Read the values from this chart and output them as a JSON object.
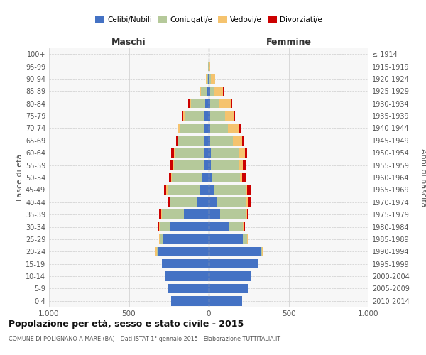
{
  "age_groups": [
    "0-4",
    "5-9",
    "10-14",
    "15-19",
    "20-24",
    "25-29",
    "30-34",
    "35-39",
    "40-44",
    "45-49",
    "50-54",
    "55-59",
    "60-64",
    "65-69",
    "70-74",
    "75-79",
    "80-84",
    "85-89",
    "90-94",
    "95-99",
    "100+"
  ],
  "birth_years": [
    "2010-2014",
    "2005-2009",
    "2000-2004",
    "1995-1999",
    "1990-1994",
    "1985-1989",
    "1980-1984",
    "1975-1979",
    "1970-1974",
    "1965-1969",
    "1960-1964",
    "1955-1959",
    "1950-1954",
    "1945-1949",
    "1940-1944",
    "1935-1939",
    "1930-1934",
    "1925-1929",
    "1920-1924",
    "1915-1919",
    "≤ 1914"
  ],
  "maschi": {
    "celibi": [
      235,
      255,
      275,
      295,
      315,
      290,
      245,
      155,
      70,
      60,
      40,
      30,
      25,
      25,
      30,
      28,
      22,
      12,
      5,
      2,
      0
    ],
    "coniugati": [
      0,
      0,
      0,
      0,
      10,
      15,
      60,
      140,
      170,
      200,
      190,
      190,
      190,
      165,
      150,
      120,
      90,
      35,
      8,
      2,
      0
    ],
    "vedovi": [
      0,
      0,
      0,
      0,
      8,
      5,
      5,
      5,
      5,
      5,
      5,
      5,
      5,
      5,
      10,
      10,
      10,
      10,
      5,
      2,
      0
    ],
    "divorziati": [
      0,
      0,
      0,
      0,
      0,
      0,
      5,
      10,
      15,
      15,
      15,
      20,
      15,
      10,
      5,
      5,
      5,
      0,
      0,
      0,
      0
    ]
  },
  "femmine": {
    "nubili": [
      210,
      245,
      265,
      305,
      325,
      215,
      125,
      70,
      50,
      35,
      20,
      15,
      15,
      10,
      10,
      10,
      10,
      10,
      5,
      2,
      0
    ],
    "coniugate": [
      0,
      0,
      0,
      0,
      10,
      25,
      90,
      165,
      185,
      195,
      175,
      175,
      170,
      140,
      110,
      90,
      55,
      25,
      8,
      2,
      0
    ],
    "vedove": [
      0,
      0,
      0,
      0,
      5,
      5,
      5,
      5,
      10,
      10,
      15,
      25,
      40,
      60,
      70,
      60,
      75,
      55,
      25,
      5,
      0
    ],
    "divorziate": [
      0,
      0,
      0,
      0,
      0,
      0,
      5,
      10,
      15,
      20,
      20,
      15,
      15,
      10,
      10,
      5,
      5,
      5,
      0,
      0,
      0
    ]
  },
  "color_celibi": "#4472c4",
  "color_coniugati": "#b5c99a",
  "color_vedovi": "#f5c36e",
  "color_divorziati": "#cc0000",
  "xlim": 1000,
  "title": "Popolazione per età, sesso e stato civile - 2015",
  "subtitle": "COMUNE DI POLIGNANO A MARE (BA) - Dati ISTAT 1° gennaio 2015 - Elaborazione TUTTITALIA.IT",
  "ylabel_left": "Fasce di età",
  "ylabel_right": "Anni di nascita",
  "xlabel_maschi": "Maschi",
  "xlabel_femmine": "Femmine",
  "bg_color": "#f7f7f7",
  "grid_color": "#cccccc"
}
